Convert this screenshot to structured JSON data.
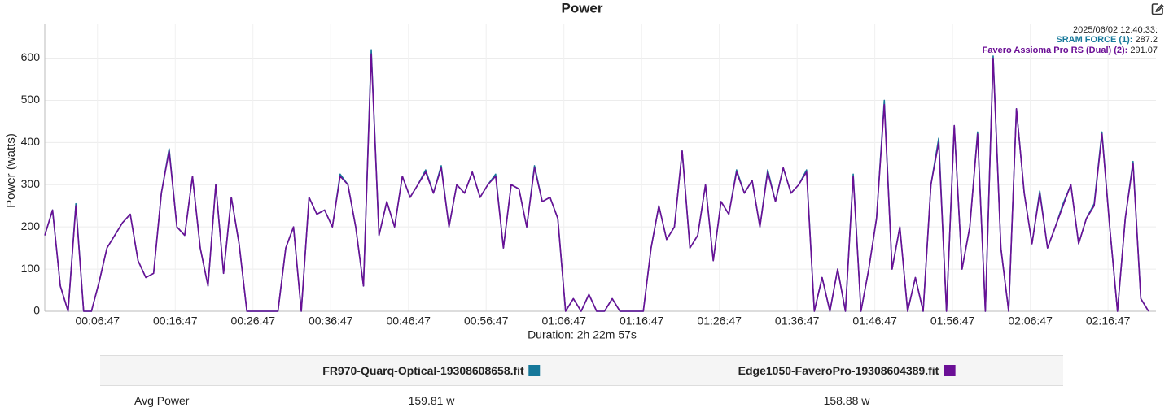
{
  "chart_data": {
    "type": "line",
    "title": "Power",
    "y_label": "Power (watts)",
    "x_label": "Duration: 2h 22m 57s",
    "tooltip": {
      "time": "2025/06/02 12:40:33:",
      "entries": [
        {
          "label": "SRAM FORCE (1):",
          "value": 287.2,
          "color": "#16789a"
        },
        {
          "label": "Favero Assioma Pro RS (Dual) (2):",
          "value": 291.07,
          "color": "#6b0f96"
        }
      ]
    },
    "xlim": [
      0,
      8577
    ],
    "xticks": [
      {
        "value": 407,
        "label": "00:06:47"
      },
      {
        "value": 1007,
        "label": "00:16:47"
      },
      {
        "value": 1607,
        "label": "00:26:47"
      },
      {
        "value": 2207,
        "label": "00:36:47"
      },
      {
        "value": 2807,
        "label": "00:46:47"
      },
      {
        "value": 3407,
        "label": "00:56:47"
      },
      {
        "value": 4007,
        "label": "01:06:47"
      },
      {
        "value": 4607,
        "label": "01:16:47"
      },
      {
        "value": 5207,
        "label": "01:26:47"
      },
      {
        "value": 5807,
        "label": "01:36:47"
      },
      {
        "value": 6407,
        "label": "01:46:47"
      },
      {
        "value": 7007,
        "label": "01:56:47"
      },
      {
        "value": 7607,
        "label": "02:06:47"
      },
      {
        "value": 8207,
        "label": "02:16:47"
      }
    ],
    "ylim": [
      0,
      680
    ],
    "yticks": [
      0,
      100,
      200,
      300,
      400,
      500,
      600
    ],
    "grid": true,
    "x": [
      0,
      60,
      120,
      180,
      240,
      300,
      360,
      420,
      480,
      540,
      600,
      660,
      720,
      780,
      840,
      900,
      960,
      1020,
      1080,
      1140,
      1200,
      1260,
      1320,
      1380,
      1440,
      1500,
      1560,
      1620,
      1680,
      1740,
      1800,
      1860,
      1920,
      1980,
      2040,
      2100,
      2160,
      2220,
      2280,
      2340,
      2400,
      2460,
      2520,
      2580,
      2640,
      2700,
      2760,
      2820,
      2880,
      2940,
      3000,
      3060,
      3120,
      3180,
      3240,
      3300,
      3360,
      3420,
      3480,
      3540,
      3600,
      3660,
      3720,
      3780,
      3840,
      3900,
      3960,
      4020,
      4080,
      4140,
      4200,
      4260,
      4320,
      4380,
      4440,
      4500,
      4560,
      4620,
      4680,
      4740,
      4800,
      4860,
      4920,
      4980,
      5040,
      5100,
      5160,
      5220,
      5280,
      5340,
      5400,
      5460,
      5520,
      5580,
      5640,
      5700,
      5760,
      5820,
      5880,
      5940,
      6000,
      6060,
      6120,
      6180,
      6240,
      6300,
      6360,
      6420,
      6480,
      6540,
      6600,
      6660,
      6720,
      6780,
      6840,
      6900,
      6960,
      7020,
      7080,
      7140,
      7200,
      7260,
      7320,
      7380,
      7440,
      7500,
      7560,
      7620,
      7680,
      7740,
      7800,
      7860,
      7920,
      7980,
      8040,
      8100,
      8160,
      8220,
      8280,
      8340,
      8400,
      8460,
      8520
    ],
    "series": [
      {
        "name": "SRAM FORCE (1)",
        "color": "#16789a",
        "values": [
          180,
          240,
          60,
          0,
          255,
          0,
          0,
          70,
          150,
          180,
          210,
          230,
          120,
          80,
          90,
          280,
          385,
          200,
          180,
          320,
          150,
          60,
          300,
          90,
          270,
          160,
          0,
          0,
          0,
          0,
          0,
          150,
          200,
          0,
          270,
          230,
          240,
          200,
          325,
          300,
          200,
          60,
          620,
          180,
          260,
          200,
          320,
          270,
          300,
          335,
          280,
          345,
          200,
          300,
          280,
          330,
          270,
          300,
          325,
          150,
          300,
          290,
          200,
          345,
          260,
          270,
          220,
          0,
          30,
          0,
          40,
          0,
          0,
          30,
          0,
          0,
          0,
          0,
          150,
          250,
          170,
          200,
          380,
          150,
          180,
          300,
          120,
          260,
          230,
          335,
          280,
          310,
          200,
          335,
          260,
          340,
          280,
          300,
          335,
          0,
          80,
          0,
          100,
          0,
          325,
          0,
          100,
          220,
          500,
          100,
          200,
          0,
          80,
          0,
          300,
          410,
          0,
          440,
          100,
          200,
          425,
          0,
          605,
          150,
          0,
          480,
          280,
          160,
          285,
          150,
          200,
          255,
          300,
          160,
          220,
          255,
          425,
          200,
          0,
          220,
          355,
          30,
          0
        ]
      },
      {
        "name": "Favero Assioma Pro RS (Dual) (2)",
        "color": "#6b0f96",
        "values": [
          180,
          240,
          60,
          0,
          250,
          0,
          0,
          70,
          150,
          180,
          210,
          230,
          120,
          80,
          90,
          280,
          380,
          200,
          180,
          320,
          150,
          60,
          300,
          90,
          270,
          160,
          0,
          0,
          0,
          0,
          0,
          150,
          200,
          0,
          270,
          230,
          240,
          200,
          320,
          300,
          200,
          60,
          610,
          180,
          260,
          200,
          320,
          270,
          300,
          330,
          280,
          340,
          200,
          300,
          280,
          330,
          270,
          300,
          320,
          150,
          300,
          290,
          200,
          340,
          260,
          270,
          220,
          0,
          30,
          0,
          40,
          0,
          0,
          30,
          0,
          0,
          0,
          0,
          150,
          250,
          170,
          200,
          380,
          150,
          180,
          300,
          120,
          260,
          230,
          330,
          280,
          310,
          200,
          330,
          260,
          340,
          280,
          300,
          330,
          0,
          80,
          0,
          100,
          0,
          320,
          0,
          100,
          220,
          490,
          100,
          200,
          0,
          80,
          0,
          300,
          400,
          0,
          440,
          100,
          200,
          420,
          0,
          600,
          150,
          0,
          480,
          280,
          160,
          280,
          150,
          200,
          250,
          300,
          160,
          220,
          250,
          420,
          200,
          0,
          220,
          350,
          30,
          0
        ]
      }
    ]
  },
  "table": {
    "headers": [
      "FR970-Quarq-Optical-19308608658.fit",
      "Edge1050-FaveroPro-19308604389.fit"
    ],
    "rows": [
      [
        "Avg Power",
        "159.81 w",
        "158.88 w"
      ]
    ]
  }
}
